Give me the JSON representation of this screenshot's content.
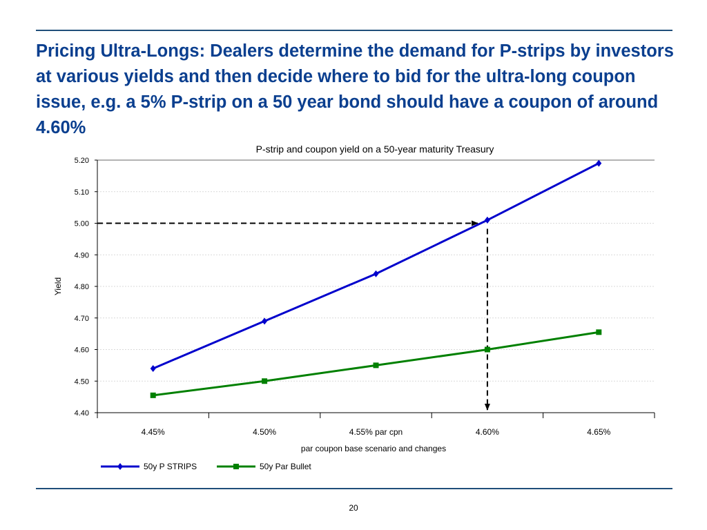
{
  "slide": {
    "title_lead": "Pricing Ultra-Longs:",
    "title_rest": " Dealers determine the demand for P-strips by investors at various yields and then decide where to bid for the ultra-long coupon issue, e.g. a 5% P-strip on a 50 year bond should have a coupon of around 4.60%",
    "page_number": "20"
  },
  "chart_data": {
    "type": "line",
    "title": "P-strip and coupon yield on a 50-year maturity Treasury",
    "xlabel": "par coupon base scenario and changes",
    "ylabel": "Yield",
    "categories": [
      "4.45%",
      "4.50%",
      "4.55% par cpn",
      "4.60%",
      "4.65%"
    ],
    "ylim": [
      4.4,
      5.2
    ],
    "yticks": [
      "4.40",
      "4.50",
      "4.60",
      "4.70",
      "4.80",
      "4.90",
      "5.00",
      "5.10",
      "5.20"
    ],
    "grid": true,
    "legend_position": "bottom-left",
    "series": [
      {
        "name": "50y P STRIPS",
        "color": "#0000cc",
        "marker": "diamond",
        "values": [
          4.54,
          4.69,
          4.84,
          5.01,
          5.19
        ]
      },
      {
        "name": "50y Par Bullet",
        "color": "#008000",
        "marker": "square",
        "values": [
          4.455,
          4.5,
          4.55,
          4.6,
          4.655
        ]
      }
    ],
    "annotation": {
      "y_value": 5.0,
      "category_index": 3,
      "style": "dashed-arrows"
    }
  }
}
